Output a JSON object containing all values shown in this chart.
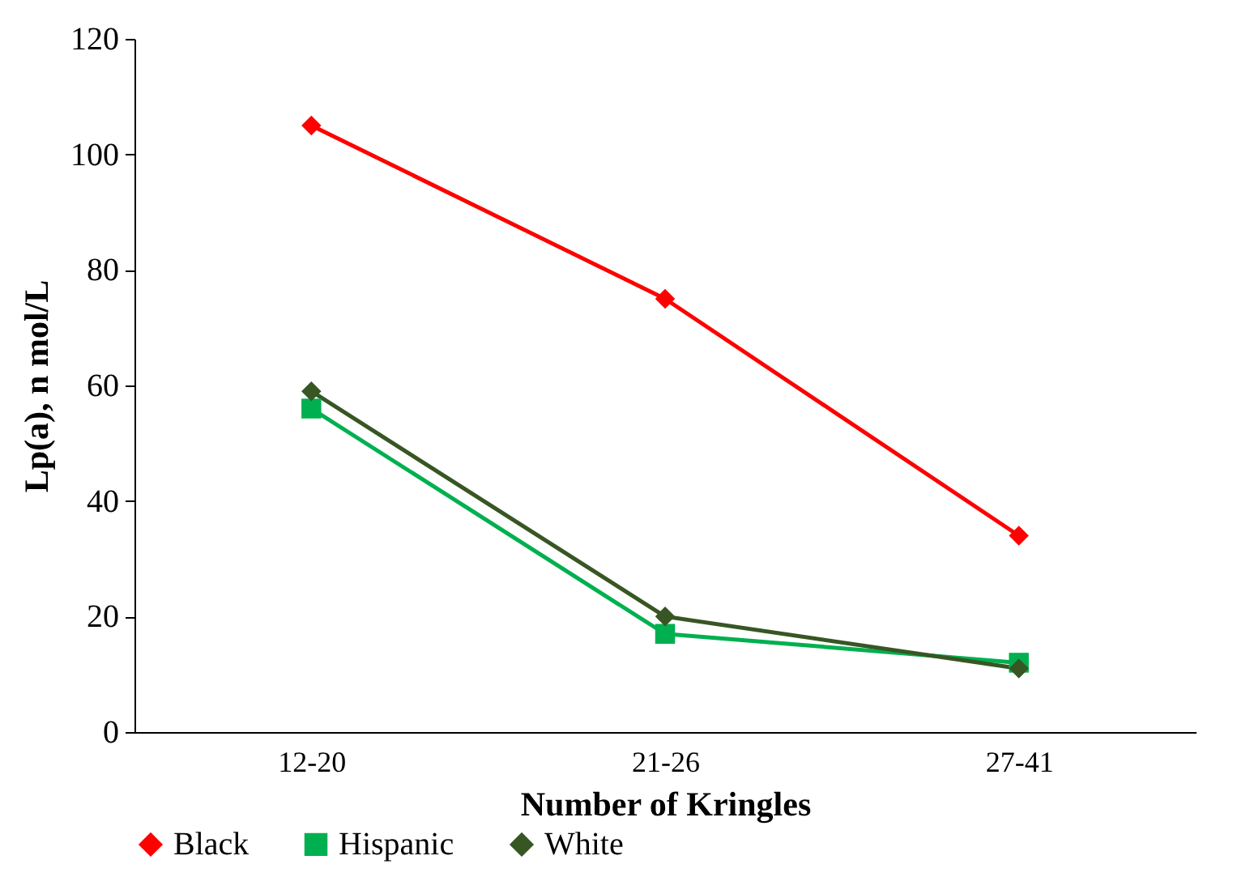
{
  "chart_data": {
    "type": "line",
    "xlabel": "Number of Kringles",
    "ylabel": "Lp(a), n mol/L",
    "categories": [
      "12-20",
      "21-26",
      "27-41"
    ],
    "series": [
      {
        "name": "Black",
        "color": "#ff0000",
        "marker": "diamond",
        "values": [
          105,
          75,
          34
        ]
      },
      {
        "name": "Hispanic",
        "color": "#00b050",
        "marker": "square",
        "values": [
          56,
          17,
          12
        ]
      },
      {
        "name": "White",
        "color": "#375623",
        "marker": "diamond",
        "values": [
          59,
          20,
          11
        ]
      }
    ],
    "ylim": [
      0,
      120
    ],
    "yticks": [
      0,
      20,
      40,
      60,
      80,
      100,
      120
    ],
    "grid": false,
    "legend": "bottom",
    "line_style": "solid"
  }
}
